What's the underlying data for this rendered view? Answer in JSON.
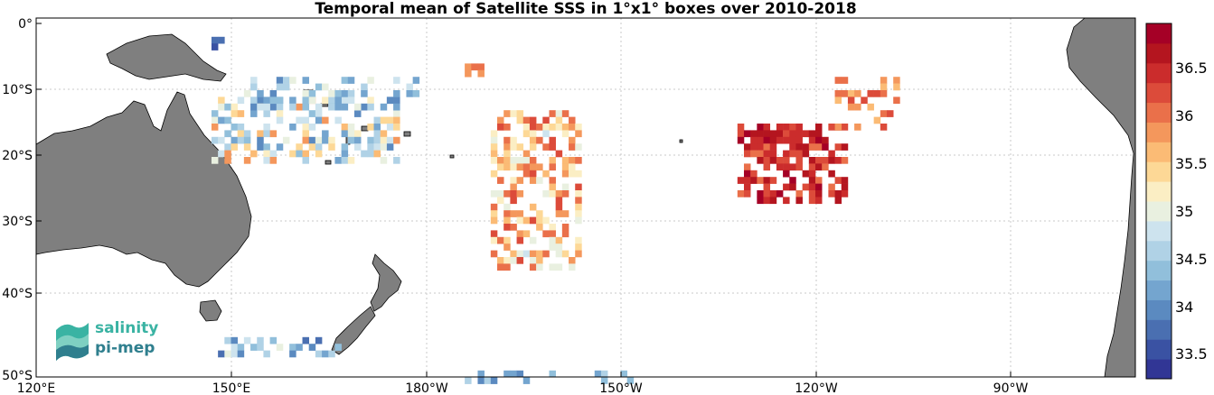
{
  "title": "Temporal mean of Satellite SSS in 1°x1° boxes over 2010-2018",
  "axes": {
    "x_ticks": [
      "120°E",
      "150°E",
      "180°W",
      "150°W",
      "120°W",
      "90°W"
    ],
    "y_ticks": [
      "0°",
      "10°S",
      "20°S",
      "30°S",
      "40°S",
      "50°S"
    ]
  },
  "colorbar": {
    "range": [
      33.25,
      37.0
    ],
    "ticks": [
      "33.5",
      "34",
      "34.5",
      "35",
      "35.5",
      "36",
      "36.5"
    ],
    "colors": [
      "#313695",
      "#3a52a3",
      "#4a6fb1",
      "#5b8ac0",
      "#74a5cf",
      "#91bfdb",
      "#b0d2e6",
      "#cde3ee",
      "#e9f0e0",
      "#fbeec4",
      "#fdd896",
      "#fbbb75",
      "#f4975c",
      "#ea704a",
      "#dc4b3a",
      "#cb2c2c",
      "#b4151f",
      "#a50026"
    ]
  },
  "logo": {
    "line1": "salinity",
    "line2": "pi-mep"
  },
  "land_color": "#7f7f7f"
}
